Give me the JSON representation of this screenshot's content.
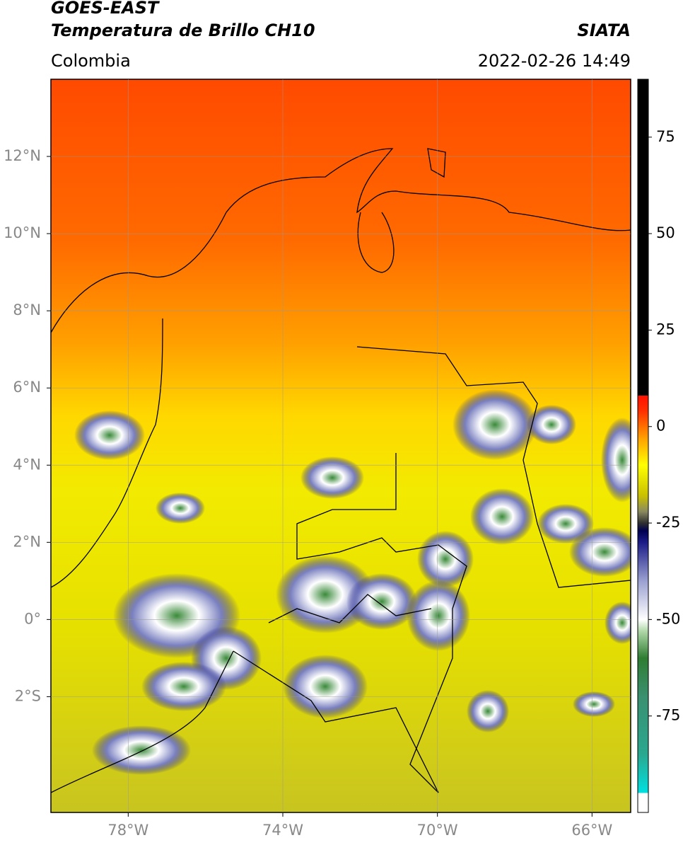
{
  "header": {
    "title": "GOES-EAST",
    "subtitle": "Temperatura de Brillo CH10",
    "region": "Colombia",
    "source": "SIATA",
    "datetime": "2022-02-26 14:49"
  },
  "map": {
    "xlim": [
      -80,
      -65
    ],
    "ylim": [
      -5,
      14
    ],
    "xticks": [
      {
        "value": -78,
        "label": "78°W"
      },
      {
        "value": -74,
        "label": "74°W"
      },
      {
        "value": -70,
        "label": "70°W"
      },
      {
        "value": -66,
        "label": "66°W"
      }
    ],
    "yticks": [
      {
        "value": 12,
        "label": "12°N"
      },
      {
        "value": 10,
        "label": "10°N"
      },
      {
        "value": 8,
        "label": "8°N"
      },
      {
        "value": 6,
        "label": "6°N"
      },
      {
        "value": 4,
        "label": "4°N"
      },
      {
        "value": 2,
        "label": "2°N"
      },
      {
        "value": 0,
        "label": "0°"
      },
      {
        "value": -2,
        "label": "2°S"
      }
    ],
    "grid": true
  },
  "colorbar": {
    "lim": [
      -100,
      90
    ],
    "ticks": [
      -75,
      -50,
      -25,
      0,
      25,
      50,
      75
    ],
    "stops": [
      [
        -100,
        "#ffffff"
      ],
      [
        -95,
        "#ffffff"
      ],
      [
        -95,
        "#00e0e0"
      ],
      [
        -85,
        "#2aa890"
      ],
      [
        -70,
        "#3a9070"
      ],
      [
        -60,
        "#2e7d32"
      ],
      [
        -53,
        "#b0d8a8"
      ],
      [
        -50,
        "#ffffff"
      ],
      [
        -40,
        "#9aa0d0"
      ],
      [
        -30,
        "#1c1c88"
      ],
      [
        -27,
        "#000050"
      ],
      [
        -25,
        "#303030"
      ],
      [
        -22,
        "#8a8a60"
      ],
      [
        -18,
        "#c8c000"
      ],
      [
        -10,
        "#ffff00"
      ],
      [
        -3,
        "#ffa000"
      ],
      [
        4,
        "#ff3000"
      ],
      [
        8,
        "#ff1000"
      ],
      [
        8,
        "#000000"
      ],
      [
        90,
        "#000000"
      ]
    ]
  }
}
